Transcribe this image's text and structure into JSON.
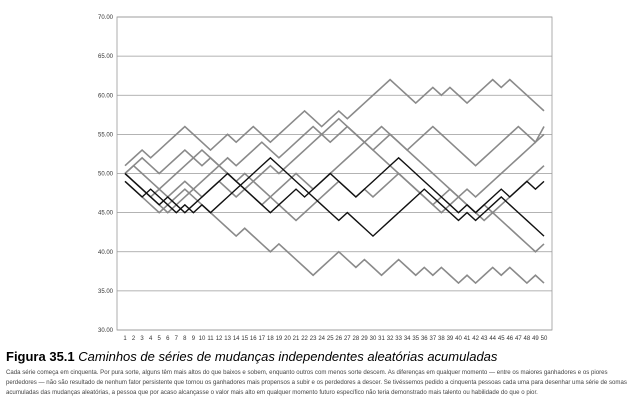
{
  "figure": {
    "label": "Figura 35.1",
    "title": "Caminhos de séries de mudanças independentes aleatórias acumuladas",
    "caption_lines": [
      "Cada série começa em cinquenta. Por pura sorte, alguns têm mais altos do que baixos e sobem, enquanto outros com menos sorte descem. As diferenças em qualquer momento — entre os maiores ganhadores e os piores",
      "perdedores — não são resultado de nenhum fator persistente que tornou os ganhadores mais propensos a subir e os perdedores a descer. Se tivéssemos pedido a cinquenta pessoas cada uma para desenhar uma série de somas",
      "acumuladas das mudanças aleatórias, a pessoa que por acaso alcançasse o valor mais alto em qualquer momento futuro específico não teria demonstrado mais talento ou habilidade do que o pior."
    ]
  },
  "chart_data": {
    "type": "line",
    "x": [
      1,
      2,
      3,
      4,
      5,
      6,
      7,
      8,
      9,
      10,
      11,
      12,
      13,
      14,
      15,
      16,
      17,
      18,
      19,
      20,
      21,
      22,
      23,
      24,
      25,
      26,
      27,
      28,
      29,
      30,
      31,
      32,
      33,
      34,
      35,
      36,
      37,
      38,
      39,
      40,
      41,
      42,
      43,
      44,
      45,
      46,
      47,
      48,
      49,
      50
    ],
    "y_tick_labels": [
      "70.00",
      "65.00",
      "60.00",
      "55.00",
      "50.00",
      "45.00",
      "40.00",
      "35.00",
      "30.00"
    ],
    "ylim": [
      30,
      70
    ],
    "grid": true,
    "series": [
      {
        "color": "#8a8a8a",
        "values": [
          51,
          52,
          53,
          52,
          53,
          54,
          55,
          56,
          55,
          54,
          53,
          54,
          55,
          54,
          55,
          56,
          55,
          54,
          55,
          56,
          57,
          58,
          57,
          56,
          57,
          58,
          57,
          58,
          59,
          60,
          61,
          62,
          61,
          60,
          59,
          60,
          61,
          60,
          61,
          60,
          59,
          60,
          61,
          62,
          61,
          62,
          61,
          60,
          59,
          58
        ]
      },
      {
        "color": "#8a8a8a",
        "values": [
          49,
          48,
          47,
          46,
          45,
          46,
          47,
          48,
          47,
          46,
          45,
          44,
          43,
          42,
          43,
          42,
          41,
          40,
          41,
          40,
          39,
          38,
          37,
          38,
          39,
          40,
          39,
          38,
          39,
          38,
          37,
          38,
          39,
          38,
          37,
          38,
          37,
          38,
          37,
          36,
          37,
          36,
          37,
          38,
          37,
          38,
          37,
          36,
          37,
          36
        ]
      },
      {
        "color": "#8a8a8a",
        "values": [
          50,
          51,
          52,
          51,
          50,
          51,
          52,
          53,
          52,
          51,
          52,
          51,
          50,
          49,
          50,
          49,
          50,
          51,
          50,
          51,
          52,
          53,
          54,
          55,
          54,
          55,
          56,
          55,
          54,
          53,
          52,
          51,
          50,
          49,
          48,
          47,
          46,
          45,
          46,
          47,
          48,
          47,
          48,
          49,
          50,
          51,
          52,
          53,
          54,
          55
        ]
      },
      {
        "color": "#8a8a8a",
        "values": [
          50,
          49,
          48,
          47,
          48,
          49,
          50,
          51,
          52,
          53,
          52,
          51,
          50,
          49,
          48,
          47,
          46,
          47,
          48,
          49,
          50,
          49,
          48,
          49,
          50,
          51,
          52,
          53,
          54,
          53,
          54,
          55,
          54,
          53,
          52,
          51,
          50,
          49,
          48,
          47,
          46,
          45,
          46,
          45,
          46,
          47,
          48,
          49,
          50,
          51
        ]
      },
      {
        "color": "#8a8a8a",
        "values": [
          50,
          49,
          48,
          47,
          46,
          45,
          46,
          47,
          48,
          49,
          50,
          51,
          52,
          51,
          52,
          53,
          54,
          53,
          52,
          53,
          54,
          55,
          56,
          55,
          56,
          57,
          56,
          55,
          54,
          55,
          56,
          55,
          54,
          53,
          54,
          55,
          56,
          55,
          54,
          53,
          52,
          51,
          52,
          53,
          54,
          55,
          56,
          55,
          54,
          56
        ]
      },
      {
        "color": "#8a8a8a",
        "values": [
          50,
          51,
          50,
          49,
          48,
          47,
          48,
          49,
          48,
          47,
          48,
          49,
          48,
          47,
          48,
          49,
          48,
          47,
          46,
          45,
          44,
          45,
          46,
          47,
          48,
          49,
          48,
          47,
          48,
          47,
          48,
          49,
          50,
          49,
          48,
          47,
          46,
          47,
          48,
          47,
          46,
          45,
          44,
          45,
          44,
          43,
          42,
          41,
          40,
          41
        ]
      },
      {
        "color": "#111111",
        "values": [
          50,
          49,
          48,
          47,
          46,
          47,
          46,
          45,
          46,
          47,
          48,
          49,
          50,
          49,
          48,
          47,
          46,
          45,
          46,
          47,
          48,
          47,
          48,
          49,
          50,
          49,
          48,
          47,
          48,
          49,
          50,
          51,
          52,
          51,
          50,
          49,
          48,
          47,
          46,
          45,
          46,
          45,
          46,
          47,
          48,
          47,
          48,
          49,
          48,
          49
        ]
      },
      {
        "color": "#111111",
        "values": [
          49,
          48,
          47,
          48,
          47,
          46,
          45,
          46,
          45,
          46,
          45,
          46,
          47,
          48,
          49,
          50,
          51,
          52,
          51,
          50,
          49,
          48,
          47,
          46,
          45,
          44,
          45,
          44,
          43,
          42,
          43,
          44,
          45,
          46,
          47,
          48,
          47,
          46,
          45,
          44,
          45,
          44,
          45,
          46,
          47,
          46,
          45,
          44,
          43,
          42
        ]
      }
    ]
  }
}
